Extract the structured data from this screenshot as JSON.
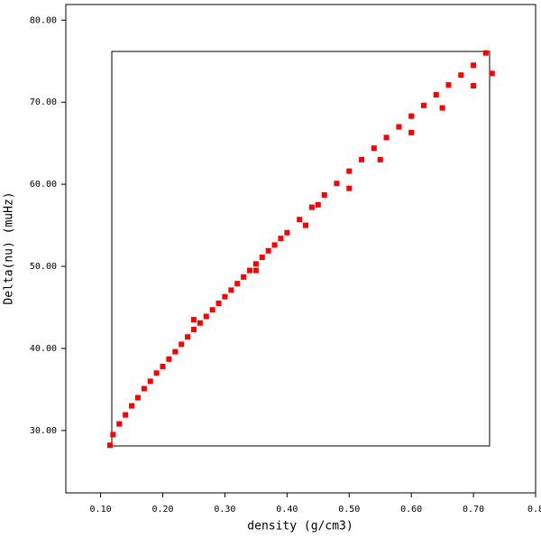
{
  "chart_data": {
    "type": "scatter",
    "xlabel": "density (g/cm3)",
    "ylabel": "Delta(nu) (muHz)",
    "xlim": [
      0.044,
      0.8
    ],
    "ylim": [
      22.4,
      81.9
    ],
    "xticks": [
      {
        "value": 0.1,
        "label": "0.10"
      },
      {
        "value": 0.2,
        "label": "0.20"
      },
      {
        "value": 0.3,
        "label": "0.30"
      },
      {
        "value": 0.4,
        "label": "0.40"
      },
      {
        "value": 0.5,
        "label": "0.50"
      },
      {
        "value": 0.6,
        "label": "0.60"
      },
      {
        "value": 0.7,
        "label": "0.70"
      },
      {
        "value": 0.8,
        "label": "0.8"
      }
    ],
    "yticks": [
      {
        "value": 30,
        "label": "30.00"
      },
      {
        "value": 40,
        "label": "40.00"
      },
      {
        "value": 50,
        "label": "50.00"
      },
      {
        "value": 60,
        "label": "60.00"
      },
      {
        "value": 70,
        "label": "70.00"
      },
      {
        "value": 80,
        "label": "80.00"
      }
    ],
    "color": "#ff0000",
    "x": [
      0.115,
      0.12,
      0.13,
      0.14,
      0.15,
      0.16,
      0.17,
      0.18,
      0.19,
      0.2,
      0.21,
      0.22,
      0.23,
      0.24,
      0.25,
      0.26,
      0.27,
      0.28,
      0.29,
      0.3,
      0.31,
      0.32,
      0.33,
      0.34,
      0.35,
      0.36,
      0.37,
      0.38,
      0.39,
      0.4,
      0.42,
      0.44,
      0.46,
      0.48,
      0.5,
      0.52,
      0.54,
      0.56,
      0.58,
      0.6,
      0.62,
      0.64,
      0.66,
      0.68,
      0.7,
      0.72,
      0.5,
      0.55,
      0.6,
      0.65,
      0.7,
      0.73,
      0.45,
      0.35,
      0.25,
      0.43
    ],
    "y": [
      28.2,
      29.5,
      30.8,
      31.9,
      33,
      34,
      35.1,
      36,
      37,
      37.8,
      38.7,
      39.6,
      40.5,
      41.4,
      42.3,
      43.1,
      43.9,
      44.7,
      45.5,
      46.3,
      47.1,
      47.9,
      48.7,
      49.5,
      50.3,
      51.1,
      51.9,
      52.6,
      53.4,
      54.1,
      55.7,
      57.2,
      58.7,
      60.1,
      61.6,
      63,
      64.4,
      65.7,
      67,
      68.3,
      69.6,
      70.9,
      72.1,
      73.3,
      74.5,
      76,
      59.5,
      63,
      66.3,
      69.3,
      72,
      73.5,
      57.5,
      49.5,
      43.5,
      55
    ]
  }
}
